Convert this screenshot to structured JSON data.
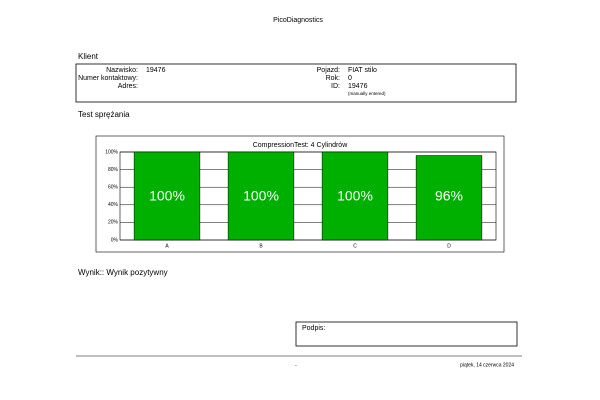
{
  "header": {
    "title": "PicoDiagnostics"
  },
  "client": {
    "title": "Klient",
    "left": [
      {
        "label": "Nazwisko:",
        "value": "19476"
      },
      {
        "label": "Numer kontaktowy:"
      },
      {
        "label": "Adres:"
      }
    ],
    "right": [
      {
        "label": "Pojazd:",
        "value": "FIAT stilo"
      },
      {
        "label": "Rok:",
        "value": "0"
      },
      {
        "label": "ID:",
        "value": "19476"
      }
    ],
    "note": "(manually entered)"
  },
  "test": {
    "title": "Test sprężania"
  },
  "chart_data": {
    "type": "bar",
    "title": "CompressionTest: 4 Cylindrów",
    "categories": [
      "A",
      "B",
      "C",
      "D"
    ],
    "values": [
      100,
      100,
      100,
      96
    ],
    "value_labels": [
      "100%",
      "100%",
      "100%",
      "96%"
    ],
    "color": "#00b000",
    "ylim": [
      0,
      100
    ],
    "yticks": [
      {
        "value": 0,
        "label": "0%"
      },
      {
        "value": 20,
        "label": "20%"
      },
      {
        "value": 40,
        "label": "40%"
      },
      {
        "value": 60,
        "label": "60%"
      },
      {
        "value": 80,
        "label": "80%"
      },
      {
        "value": 100,
        "label": "100%"
      }
    ],
    "grid": true
  },
  "result": "Wynik:: Wynik pozytywny",
  "signature": {
    "label": "Podpis:"
  },
  "footer": {
    "center": "-",
    "date": "piątek, 14 czerwca 2024"
  }
}
